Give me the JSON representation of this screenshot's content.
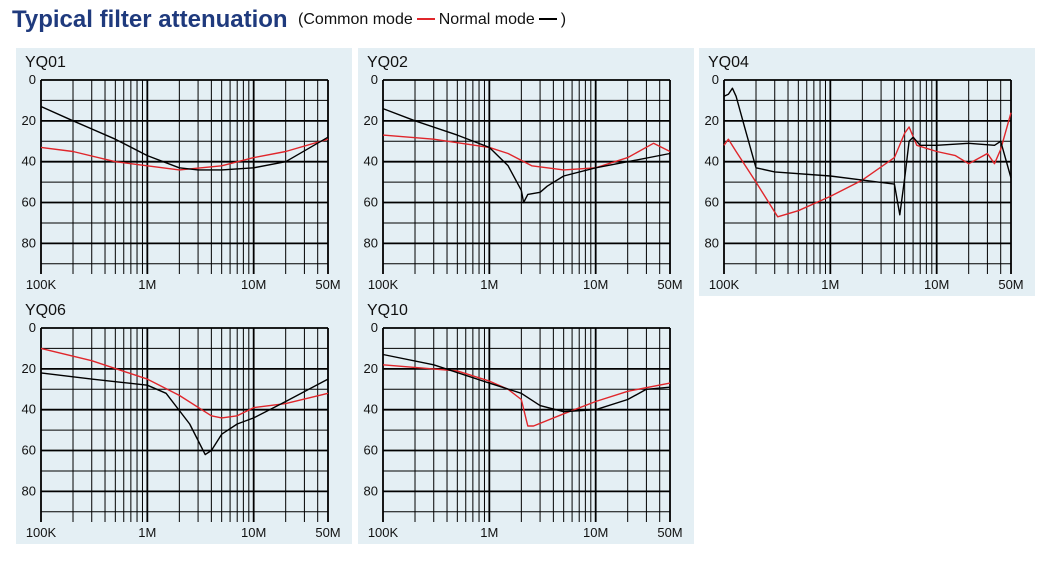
{
  "page": {
    "title": "Typical filter attenuation",
    "legend_open": "(",
    "legend_close": ")",
    "legend": [
      {
        "label": "Common mode",
        "color": "#e0262b"
      },
      {
        "label": "Normal mode",
        "color": "#000000"
      }
    ]
  },
  "chart_data": [
    {
      "type": "line",
      "title": "YQ01",
      "xscale": "log",
      "xlim": [
        100000,
        50000000
      ],
      "ylim": [
        0,
        95
      ],
      "x_ticks": [
        {
          "v": 100000,
          "label": "100K"
        },
        {
          "v": 1000000,
          "label": "1M"
        },
        {
          "v": 10000000,
          "label": "10M"
        },
        {
          "v": 50000000,
          "label": "50M"
        }
      ],
      "y_ticks": [
        0,
        20,
        40,
        60,
        80
      ],
      "grid": true,
      "series": [
        {
          "color": "#e0262b",
          "points": [
            [
              100000,
              33
            ],
            [
              200000,
              35
            ],
            [
              500000,
              40
            ],
            [
              1000000,
              42
            ],
            [
              2000000,
              44
            ],
            [
              5000000,
              42
            ],
            [
              10000000,
              38
            ],
            [
              20000000,
              35
            ],
            [
              50000000,
              29
            ]
          ]
        },
        {
          "color": "#000000",
          "points": [
            [
              100000,
              13
            ],
            [
              200000,
              20
            ],
            [
              500000,
              29
            ],
            [
              1000000,
              37
            ],
            [
              2000000,
              43
            ],
            [
              3000000,
              44
            ],
            [
              5000000,
              44
            ],
            [
              10000000,
              43
            ],
            [
              20000000,
              40
            ],
            [
              50000000,
              28
            ]
          ]
        }
      ]
    },
    {
      "type": "line",
      "title": "YQ02",
      "xscale": "log",
      "xlim": [
        100000,
        50000000
      ],
      "ylim": [
        0,
        95
      ],
      "x_ticks": [
        {
          "v": 100000,
          "label": "100K"
        },
        {
          "v": 1000000,
          "label": "1M"
        },
        {
          "v": 10000000,
          "label": "10M"
        },
        {
          "v": 50000000,
          "label": "50M"
        }
      ],
      "y_ticks": [
        0,
        20,
        40,
        60,
        80
      ],
      "grid": true,
      "series": [
        {
          "color": "#e0262b",
          "points": [
            [
              100000,
              27
            ],
            [
              300000,
              29
            ],
            [
              1000000,
              33
            ],
            [
              1500000,
              36
            ],
            [
              2500000,
              42
            ],
            [
              5000000,
              44
            ],
            [
              10000000,
              43
            ],
            [
              20000000,
              38
            ],
            [
              35000000,
              31
            ],
            [
              50000000,
              35
            ]
          ]
        },
        {
          "color": "#000000",
          "points": [
            [
              100000,
              14
            ],
            [
              200000,
              20
            ],
            [
              500000,
              27
            ],
            [
              1000000,
              33
            ],
            [
              1500000,
              42
            ],
            [
              2000000,
              54
            ],
            [
              2100000,
              60
            ],
            [
              2300000,
              56
            ],
            [
              3000000,
              55
            ],
            [
              3500000,
              52
            ],
            [
              5000000,
              47
            ],
            [
              10000000,
              43
            ],
            [
              20000000,
              40
            ],
            [
              50000000,
              36
            ]
          ]
        }
      ]
    },
    {
      "type": "line",
      "title": "YQ04",
      "xscale": "log",
      "xlim": [
        100000,
        50000000
      ],
      "ylim": [
        0,
        95
      ],
      "x_ticks": [
        {
          "v": 100000,
          "label": "100K"
        },
        {
          "v": 1000000,
          "label": "1M"
        },
        {
          "v": 10000000,
          "label": "10M"
        },
        {
          "v": 50000000,
          "label": "50M"
        }
      ],
      "y_ticks": [
        0,
        20,
        40,
        60,
        80
      ],
      "grid": true,
      "series": [
        {
          "color": "#e0262b",
          "points": [
            [
              100000,
              32
            ],
            [
              110000,
              29
            ],
            [
              130000,
              35
            ],
            [
              200000,
              50
            ],
            [
              320000,
              67
            ],
            [
              500000,
              64
            ],
            [
              1000000,
              57
            ],
            [
              2000000,
              49
            ],
            [
              4000000,
              38
            ],
            [
              5000000,
              26
            ],
            [
              5500000,
              23
            ],
            [
              6500000,
              32
            ],
            [
              10000000,
              35
            ],
            [
              15000000,
              37
            ],
            [
              20000000,
              41
            ],
            [
              30000000,
              36
            ],
            [
              35000000,
              41
            ],
            [
              40000000,
              34
            ],
            [
              50000000,
              16
            ]
          ]
        },
        {
          "color": "#000000",
          "points": [
            [
              100000,
              8
            ],
            [
              110000,
              7
            ],
            [
              120000,
              4
            ],
            [
              130000,
              8
            ],
            [
              160000,
              25
            ],
            [
              200000,
              43
            ],
            [
              300000,
              45
            ],
            [
              1000000,
              47
            ],
            [
              2000000,
              49
            ],
            [
              4000000,
              51
            ],
            [
              4500000,
              66
            ],
            [
              5000000,
              48
            ],
            [
              5500000,
              30
            ],
            [
              6000000,
              28
            ],
            [
              7000000,
              32
            ],
            [
              10000000,
              32
            ],
            [
              20000000,
              31
            ],
            [
              35000000,
              32
            ],
            [
              40000000,
              30
            ],
            [
              50000000,
              48
            ]
          ]
        }
      ]
    },
    {
      "type": "line",
      "title": "YQ06",
      "xscale": "log",
      "xlim": [
        100000,
        50000000
      ],
      "ylim": [
        0,
        95
      ],
      "x_ticks": [
        {
          "v": 100000,
          "label": "100K"
        },
        {
          "v": 1000000,
          "label": "1M"
        },
        {
          "v": 10000000,
          "label": "10M"
        },
        {
          "v": 50000000,
          "label": "50M"
        }
      ],
      "y_ticks": [
        0,
        20,
        40,
        60,
        80
      ],
      "grid": true,
      "series": [
        {
          "color": "#e0262b",
          "points": [
            [
              100000,
              10
            ],
            [
              300000,
              16
            ],
            [
              1000000,
              25
            ],
            [
              2000000,
              33
            ],
            [
              4000000,
              43
            ],
            [
              5000000,
              44
            ],
            [
              7000000,
              43
            ],
            [
              10000000,
              39
            ],
            [
              20000000,
              37
            ],
            [
              50000000,
              32
            ]
          ]
        },
        {
          "color": "#000000",
          "points": [
            [
              100000,
              22
            ],
            [
              300000,
              25
            ],
            [
              1000000,
              28
            ],
            [
              1500000,
              32
            ],
            [
              2500000,
              47
            ],
            [
              3500000,
              62
            ],
            [
              4000000,
              60
            ],
            [
              5000000,
              52
            ],
            [
              7000000,
              47
            ],
            [
              10000000,
              44
            ],
            [
              20000000,
              36
            ],
            [
              50000000,
              25
            ]
          ]
        }
      ]
    },
    {
      "type": "line",
      "title": "YQ10",
      "xscale": "log",
      "xlim": [
        100000,
        50000000
      ],
      "ylim": [
        0,
        95
      ],
      "x_ticks": [
        {
          "v": 100000,
          "label": "100K"
        },
        {
          "v": 1000000,
          "label": "1M"
        },
        {
          "v": 10000000,
          "label": "10M"
        },
        {
          "v": 50000000,
          "label": "50M"
        }
      ],
      "y_ticks": [
        0,
        20,
        40,
        60,
        80
      ],
      "grid": true,
      "series": [
        {
          "color": "#e0262b",
          "points": [
            [
              100000,
              18
            ],
            [
              500000,
              21
            ],
            [
              1000000,
              26
            ],
            [
              1500000,
              30
            ],
            [
              2000000,
              35
            ],
            [
              2300000,
              48
            ],
            [
              2600000,
              48
            ],
            [
              5000000,
              42
            ],
            [
              10000000,
              36
            ],
            [
              20000000,
              31
            ],
            [
              50000000,
              27
            ]
          ]
        },
        {
          "color": "#000000",
          "points": [
            [
              100000,
              13
            ],
            [
              300000,
              18
            ],
            [
              1000000,
              27
            ],
            [
              2000000,
              32
            ],
            [
              3000000,
              38
            ],
            [
              5000000,
              41
            ],
            [
              10000000,
              40
            ],
            [
              20000000,
              35
            ],
            [
              30000000,
              30
            ],
            [
              50000000,
              29
            ]
          ]
        }
      ]
    }
  ]
}
